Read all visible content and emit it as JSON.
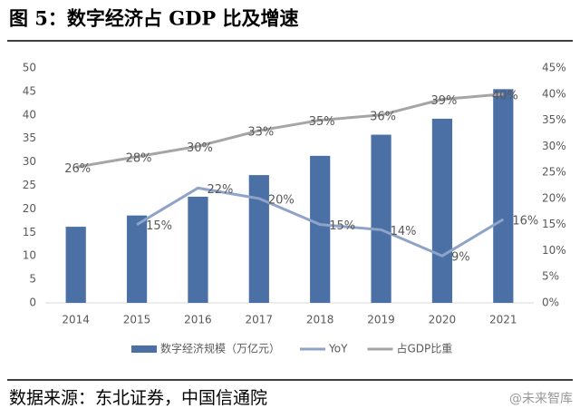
{
  "title": "图 5：数字经济占 GDP 比及增速",
  "source": "数据来源：东北证券，中国信通院",
  "watermark": "@未来智库",
  "chart_data": {
    "type": "bar-line",
    "categories": [
      "2014",
      "2015",
      "2016",
      "2017",
      "2018",
      "2019",
      "2020",
      "2021"
    ],
    "series": [
      {
        "name": "数字经济规模（万亿元）",
        "type": "bar",
        "color": "#4a70a6",
        "values": [
          16.2,
          18.6,
          22.6,
          27.2,
          31.3,
          35.8,
          39.2,
          45.5
        ]
      },
      {
        "name": "YoY",
        "type": "line",
        "axis": "y2",
        "color": "#8fa3c9",
        "values": [
          null,
          15,
          22,
          20,
          15,
          14,
          9,
          16
        ],
        "value_labels": [
          null,
          "15%",
          "22%",
          "20%",
          "15%",
          "14%",
          "9%",
          "16%"
        ]
      },
      {
        "name": "占GDP比重",
        "type": "line",
        "axis": "y2",
        "color": "#a5a5a5",
        "values": [
          26,
          28,
          30,
          33,
          35,
          36,
          39,
          40
        ],
        "value_labels": [
          "26%",
          "28%",
          "30%",
          "33%",
          "35%",
          "36%",
          "39%",
          "40%"
        ]
      }
    ],
    "ylim": [
      0,
      50
    ],
    "yticks": [
      0,
      5,
      10,
      15,
      20,
      25,
      30,
      35,
      40,
      45,
      50
    ],
    "y2lim": [
      0,
      45
    ],
    "y2ticks": [
      {
        "value": 0,
        "label": "0%"
      },
      {
        "value": 5,
        "label": "5%"
      },
      {
        "value": 10,
        "label": "10%"
      },
      {
        "value": 15,
        "label": "15%"
      },
      {
        "value": 20,
        "label": "20%"
      },
      {
        "value": 25,
        "label": "25%"
      },
      {
        "value": 30,
        "label": "30%"
      },
      {
        "value": 35,
        "label": "35%"
      },
      {
        "value": 40,
        "label": "40%"
      },
      {
        "value": 45,
        "label": "45%"
      }
    ],
    "grid": false
  }
}
